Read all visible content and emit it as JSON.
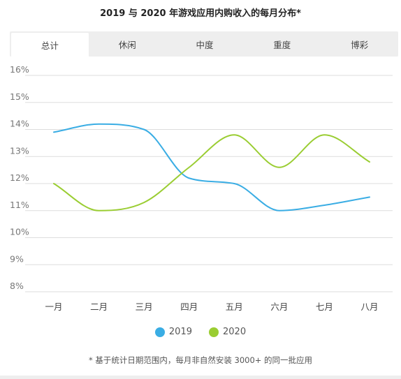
{
  "colors": {
    "series_2019": "#3aade4",
    "series_2020": "#9acd32",
    "grid": "#dddddd",
    "tick": "#777777"
  },
  "tabs": [
    {
      "label": "总计",
      "active": true
    },
    {
      "label": "休闲",
      "active": false
    },
    {
      "label": "中度",
      "active": false
    },
    {
      "label": "重度",
      "active": false
    },
    {
      "label": "博彩",
      "active": false
    }
  ],
  "footnote": "* 基于统计日期范围内，每月非自然安装 3000+ 的同一批应用",
  "chart_data": {
    "type": "line",
    "title": "2019 与 2020 年游戏应用内购收入的每月分布*",
    "categories": [
      "一月",
      "二月",
      "三月",
      "四月",
      "五月",
      "六月",
      "七月",
      "八月"
    ],
    "series": [
      {
        "name": "2019",
        "color": "#3aade4",
        "values": [
          13.9,
          14.2,
          14.0,
          12.2,
          12.0,
          11.0,
          11.2,
          11.5
        ]
      },
      {
        "name": "2020",
        "color": "#9acd32",
        "values": [
          12.0,
          11.0,
          11.3,
          12.6,
          13.8,
          12.6,
          13.8,
          12.8
        ]
      }
    ],
    "yticks": [
      "8%",
      "9%",
      "10%",
      "11%",
      "12%",
      "13%",
      "14%",
      "15%",
      "16%"
    ],
    "ylim": [
      8,
      16
    ],
    "xlabel": "",
    "ylabel": "",
    "grid": true,
    "legend_position": "bottom"
  }
}
